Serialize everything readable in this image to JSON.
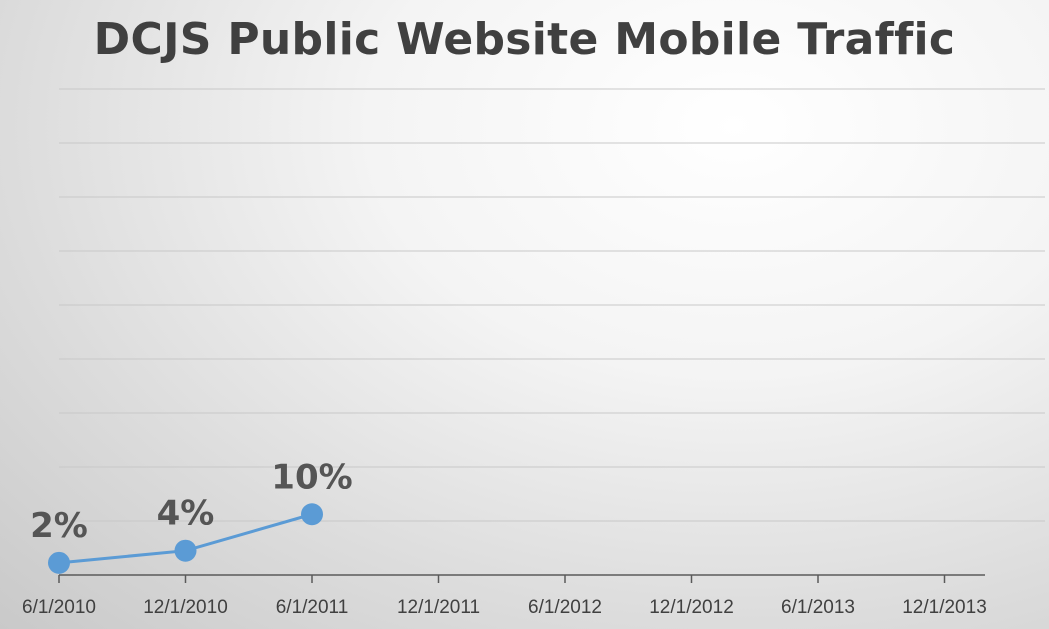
{
  "chart_data": {
    "type": "line",
    "title": "DCJS Public Website Mobile Traffic",
    "x": [
      "6/1/2010",
      "12/1/2010",
      "6/1/2011"
    ],
    "x_ticks": [
      "6/1/2010",
      "12/1/2010",
      "6/1/2011",
      "12/1/2011",
      "6/1/2012",
      "12/1/2012",
      "6/1/2013",
      "12/1/2013"
    ],
    "series": [
      {
        "values": [
          2,
          4,
          10
        ],
        "data_labels": [
          "2%",
          "4%",
          "10%"
        ],
        "color": "#5b9bd5"
      }
    ],
    "ylim": [
      0,
      80
    ],
    "y_gridlines": true,
    "y_axis_labels_visible": false
  }
}
